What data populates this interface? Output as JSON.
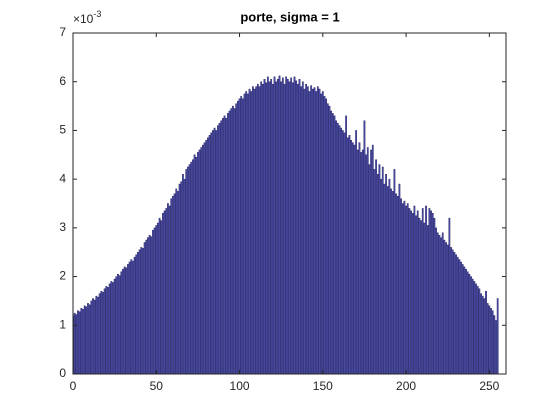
{
  "chart_data": {
    "type": "bar",
    "title": "porte, sigma = 1",
    "y_multiplier": {
      "base": "×10",
      "exponent": "-3"
    },
    "color": "#4d4da8",
    "edge_color": "#1c1c5e",
    "xlim": [
      0,
      260
    ],
    "ylim": [
      0,
      7
    ],
    "xticks": [
      0,
      50,
      100,
      150,
      200,
      250
    ],
    "yticks": [
      0,
      1,
      2,
      3,
      4,
      5,
      6,
      7
    ],
    "grid": false,
    "x": [
      0,
      1,
      2,
      3,
      4,
      5,
      6,
      7,
      8,
      9,
      10,
      11,
      12,
      13,
      14,
      15,
      16,
      17,
      18,
      19,
      20,
      21,
      22,
      23,
      24,
      25,
      26,
      27,
      28,
      29,
      30,
      31,
      32,
      33,
      34,
      35,
      36,
      37,
      38,
      39,
      40,
      41,
      42,
      43,
      44,
      45,
      46,
      47,
      48,
      49,
      50,
      51,
      52,
      53,
      54,
      55,
      56,
      57,
      58,
      59,
      60,
      61,
      62,
      63,
      64,
      65,
      66,
      67,
      68,
      69,
      70,
      71,
      72,
      73,
      74,
      75,
      76,
      77,
      78,
      79,
      80,
      81,
      82,
      83,
      84,
      85,
      86,
      87,
      88,
      89,
      90,
      91,
      92,
      93,
      94,
      95,
      96,
      97,
      98,
      99,
      100,
      101,
      102,
      103,
      104,
      105,
      106,
      107,
      108,
      109,
      110,
      111,
      112,
      113,
      114,
      115,
      116,
      117,
      118,
      119,
      120,
      121,
      122,
      123,
      124,
      125,
      126,
      127,
      128,
      129,
      130,
      131,
      132,
      133,
      134,
      135,
      136,
      137,
      138,
      139,
      140,
      141,
      142,
      143,
      144,
      145,
      146,
      147,
      148,
      149,
      150,
      151,
      152,
      153,
      154,
      155,
      156,
      157,
      158,
      159,
      160,
      161,
      162,
      163,
      164,
      165,
      166,
      167,
      168,
      169,
      170,
      171,
      172,
      173,
      174,
      175,
      176,
      177,
      178,
      179,
      180,
      181,
      182,
      183,
      184,
      185,
      186,
      187,
      188,
      189,
      190,
      191,
      192,
      193,
      194,
      195,
      196,
      197,
      198,
      199,
      200,
      201,
      202,
      203,
      204,
      205,
      206,
      207,
      208,
      209,
      210,
      211,
      212,
      213,
      214,
      215,
      216,
      217,
      218,
      219,
      220,
      221,
      222,
      223,
      224,
      225,
      226,
      227,
      228,
      229,
      230,
      231,
      232,
      233,
      234,
      235,
      236,
      237,
      238,
      239,
      240,
      241,
      242,
      243,
      244,
      245,
      246,
      247,
      248,
      249,
      250,
      251,
      252,
      253,
      254,
      255
    ],
    "values": [
      1.2,
      1.25,
      1.22,
      1.3,
      1.28,
      1.35,
      1.33,
      1.4,
      1.38,
      1.45,
      1.42,
      1.5,
      1.55,
      1.52,
      1.6,
      1.58,
      1.65,
      1.7,
      1.68,
      1.75,
      1.8,
      1.78,
      1.85,
      1.9,
      1.88,
      1.95,
      2.0,
      2.05,
      2.02,
      2.1,
      2.15,
      2.2,
      2.18,
      2.25,
      2.3,
      2.35,
      2.32,
      2.4,
      2.45,
      2.5,
      2.55,
      2.6,
      2.58,
      2.7,
      2.75,
      2.8,
      2.85,
      2.82,
      2.95,
      3.0,
      3.05,
      3.1,
      3.2,
      3.15,
      3.3,
      3.35,
      3.4,
      3.5,
      3.45,
      3.6,
      3.65,
      3.7,
      3.8,
      3.75,
      3.9,
      3.95,
      4.1,
      4.0,
      4.2,
      4.25,
      4.3,
      4.35,
      4.4,
      4.5,
      4.45,
      4.55,
      4.6,
      4.65,
      4.7,
      4.75,
      4.8,
      4.85,
      4.9,
      4.95,
      5.0,
      5.05,
      5.0,
      5.1,
      5.15,
      5.2,
      5.25,
      5.3,
      5.25,
      5.35,
      5.4,
      5.45,
      5.5,
      5.45,
      5.55,
      5.6,
      5.65,
      5.7,
      5.65,
      5.75,
      5.8,
      5.75,
      5.85,
      5.8,
      5.9,
      5.85,
      5.9,
      5.95,
      5.9,
      6.0,
      5.95,
      6.05,
      5.98,
      6.1,
      6.0,
      6.05,
      5.95,
      6.1,
      6.0,
      6.05,
      6.12,
      6.0,
      6.08,
      5.95,
      6.1,
      6.05,
      6.0,
      6.08,
      5.98,
      6.1,
      6.02,
      5.95,
      6.05,
      5.9,
      6.0,
      5.85,
      5.95,
      5.9,
      5.8,
      5.92,
      5.85,
      5.88,
      5.8,
      5.9,
      5.85,
      5.75,
      5.8,
      5.7,
      5.65,
      5.55,
      5.5,
      5.4,
      5.35,
      5.3,
      5.2,
      5.15,
      5.1,
      5.05,
      5.0,
      4.95,
      5.3,
      4.85,
      4.9,
      4.8,
      4.75,
      4.7,
      5.0,
      4.6,
      4.75,
      4.55,
      4.6,
      5.2,
      4.5,
      4.65,
      4.3,
      4.6,
      4.7,
      4.2,
      4.4,
      4.1,
      4.3,
      4.0,
      4.25,
      3.9,
      4.1,
      3.85,
      4.0,
      3.8,
      3.75,
      4.2,
      3.7,
      3.65,
      3.9,
      3.6,
      3.5,
      3.55,
      3.45,
      3.5,
      3.4,
      3.35,
      3.3,
      3.45,
      3.25,
      3.35,
      3.2,
      3.15,
      3.4,
      3.1,
      3.45,
      3.05,
      3.4,
      3.35,
      3.3,
      3.2,
      3.0,
      2.9,
      2.85,
      2.8,
      2.9,
      2.75,
      2.7,
      2.65,
      3.2,
      2.6,
      2.55,
      2.5,
      2.45,
      2.4,
      2.35,
      2.3,
      2.25,
      2.2,
      2.15,
      2.1,
      2.05,
      2.0,
      1.95,
      1.9,
      1.85,
      1.8,
      1.75,
      1.65,
      1.6,
      1.55,
      1.7,
      1.45,
      1.4,
      1.35,
      1.3,
      1.2,
      1.1,
      1.55
    ]
  }
}
